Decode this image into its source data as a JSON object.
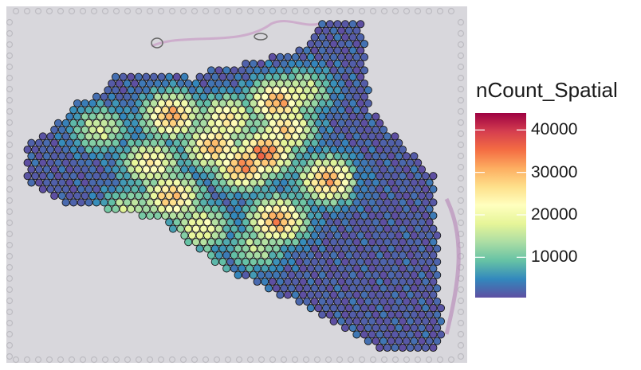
{
  "chart_data": {
    "type": "heatmap",
    "title": "",
    "xlabel": "",
    "ylabel": "",
    "legend": {
      "title": "nCount_Spatial",
      "placement": "right",
      "ticks": [
        {
          "label": "40000",
          "value": 40000
        },
        {
          "label": "30000",
          "value": 30000
        },
        {
          "label": "20000",
          "value": 20000
        },
        {
          "label": "10000",
          "value": 10000
        }
      ],
      "range": [
        500,
        44000
      ]
    },
    "colormap": [
      "#5E4FA2",
      "#3288BD",
      "#66C2A5",
      "#ABDDA4",
      "#E6F598",
      "#FFFFBF",
      "#FEE08B",
      "#FDAE61",
      "#F46D43",
      "#D53E4F",
      "#9E0142"
    ],
    "background_tissue_color": "#d8d6dc",
    "spot_outline_color": "#1a1a1a",
    "hotspots": [
      {
        "x": 0.57,
        "y": 0.4,
        "value": 34000
      },
      {
        "x": 0.52,
        "y": 0.44,
        "value": 32000
      },
      {
        "x": 0.6,
        "y": 0.25,
        "value": 30000
      },
      {
        "x": 0.6,
        "y": 0.6,
        "value": 31000
      },
      {
        "x": 0.35,
        "y": 0.29,
        "value": 30000
      },
      {
        "x": 0.45,
        "y": 0.38,
        "value": 29000
      },
      {
        "x": 0.62,
        "y": 0.33,
        "value": 26000
      },
      {
        "x": 0.72,
        "y": 0.48,
        "value": 30000
      },
      {
        "x": 0.35,
        "y": 0.53,
        "value": 28000
      },
      {
        "x": 0.3,
        "y": 0.43,
        "value": 23000
      },
      {
        "x": 0.18,
        "y": 0.33,
        "value": 16000
      },
      {
        "x": 0.48,
        "y": 0.3,
        "value": 24000
      },
      {
        "x": 0.42,
        "y": 0.62,
        "value": 20000
      },
      {
        "x": 0.55,
        "y": 0.68,
        "value": 14000
      },
      {
        "x": 0.25,
        "y": 0.57,
        "value": 15000
      },
      {
        "x": 0.66,
        "y": 0.22,
        "value": 17000
      },
      {
        "x": 0.42,
        "y": 0.75,
        "value": 12000
      }
    ]
  }
}
